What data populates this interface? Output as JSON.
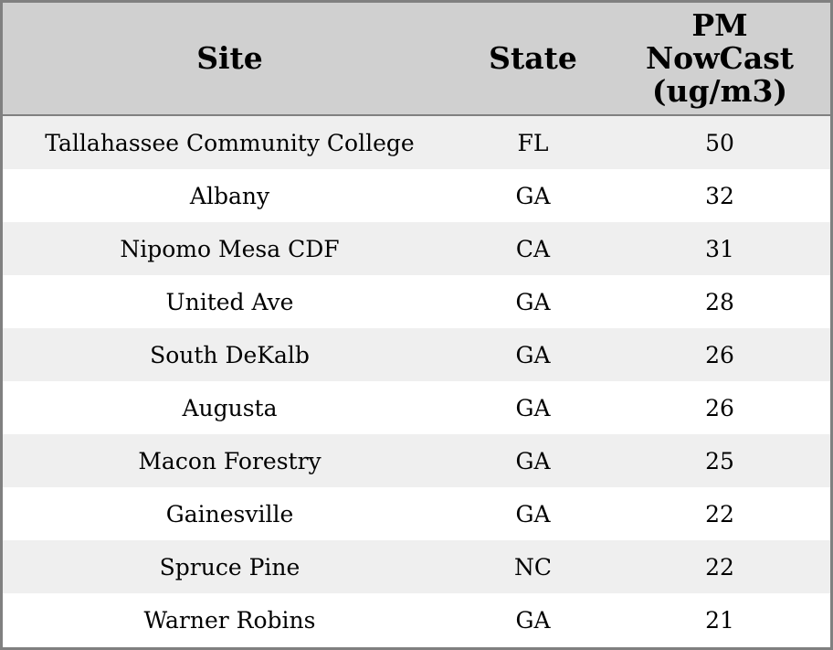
{
  "table": {
    "header": [
      "Site",
      "State",
      "PM NowCast (ug/m3)"
    ],
    "rows": [
      [
        "Tallahassee Community College",
        "FL",
        50
      ],
      [
        "Albany",
        "GA",
        32
      ],
      [
        "Nipomo Mesa CDF",
        "CA",
        31
      ],
      [
        "United Ave",
        "GA",
        28
      ],
      [
        "South DeKalb",
        "GA",
        26
      ],
      [
        "Augusta",
        "GA",
        26
      ],
      [
        "Macon Forestry",
        "GA",
        25
      ],
      [
        "Gainesville",
        "GA",
        22
      ],
      [
        "Spruce Pine",
        "NC",
        22
      ],
      [
        "Warner Robins",
        "GA",
        21
      ]
    ]
  }
}
